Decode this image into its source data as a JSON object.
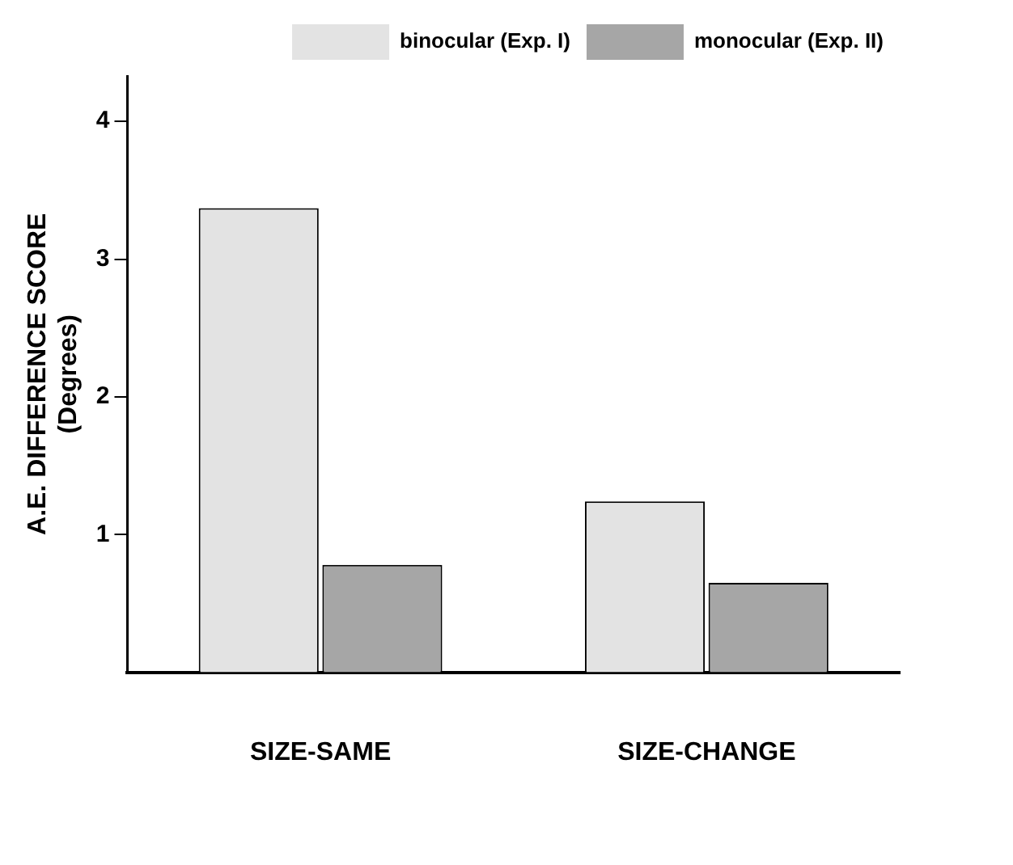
{
  "chart_data": {
    "type": "bar",
    "ylabel": "A.E. DIFFERENCE SCORE\n(Degrees)",
    "categories": [
      "SIZE-SAME",
      "SIZE-CHANGE"
    ],
    "series": [
      {
        "name": "binocular (Exp. I)",
        "color": "#e3e3e3",
        "values": [
          3.37,
          1.24
        ]
      },
      {
        "name": "monocular (Exp. II)",
        "color": "#a6a6a6",
        "values": [
          0.78,
          0.65
        ]
      }
    ],
    "ylim": [
      0,
      4.33
    ],
    "yticks": [
      1,
      2,
      3,
      4
    ],
    "grid": false,
    "legend": "top right"
  }
}
